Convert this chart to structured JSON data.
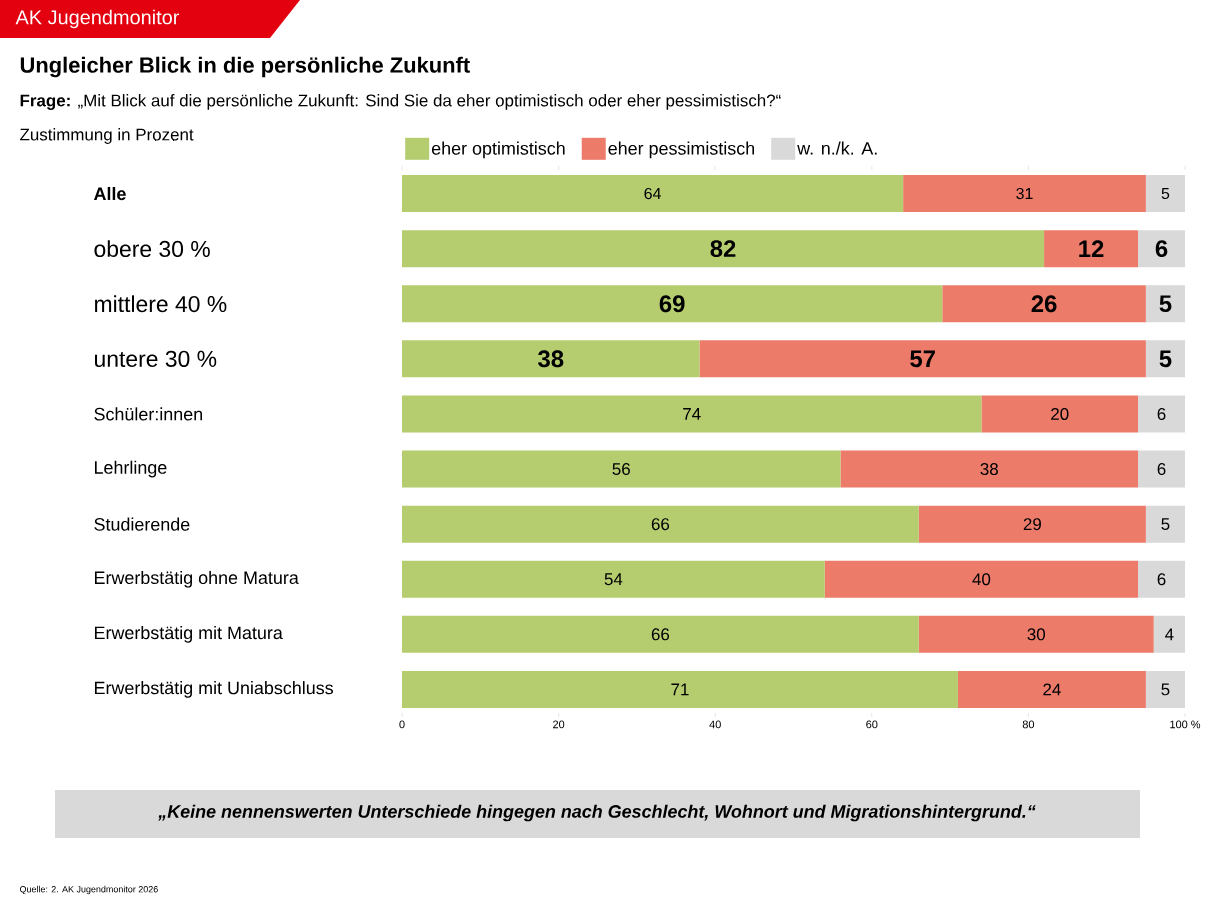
{
  "chart_data": {
    "type": "bar",
    "orientation": "horizontal",
    "stacked": true,
    "title": "Ungleicher Blick in die persönliche Zukunft",
    "subtitle": "**Frage:** „Mit Blick auf die persönliche Zukunft: Sind Sie da eher optimistisch oder eher pessimistisch?“",
    "categories": [
      "Alle",
      "obere 30 %",
      "mittlere 40 %",
      "untere 30 %",
      "Schüler:innen",
      "Lehrlinge",
      "Studierende",
      "Erwerbstätig ohne Matura",
      "Erwerbstätig mit Matura",
      "Erwerbstätig mit Uniabschluss"
    ],
    "series": [
      {
        "name": "eher optimistisch",
        "color": "#b5cc6f",
        "values": [
          64,
          82,
          69,
          38,
          74,
          56,
          66,
          54,
          66,
          71
        ]
      },
      {
        "name": "eher pessimistisch",
        "color": "#ec7b6a",
        "values": [
          31,
          12,
          26,
          57,
          20,
          38,
          29,
          40,
          30,
          24
        ]
      },
      {
        "name": "w. n./k. A.",
        "color": "#d9d9d9",
        "values": [
          5,
          6,
          5,
          5,
          6,
          6,
          5,
          6,
          4,
          5
        ]
      }
    ],
    "xlim": [
      0,
      100
    ],
    "xticks": [
      0,
      20,
      40,
      60,
      80,
      {
        "value": 100,
        "label": "100 %"
      }
    ],
    "data_labels": true,
    "legend": "top left",
    "annotations": [
      "AK Jugendmonitor",
      "Zustimmung in Prozent",
      "„Keine nennenswerten Unterschiede hingegen nach Geschlecht, Wohnort und Migrationshintergrund.“",
      "Quelle: 2. AK Jugendmonitor 2026"
    ]
  }
}
